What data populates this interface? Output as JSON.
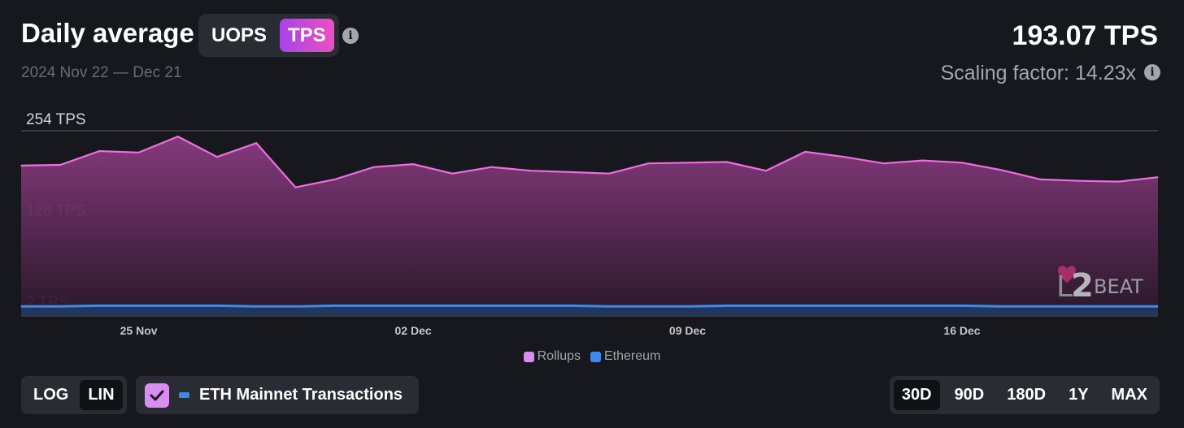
{
  "header": {
    "title": "Daily average",
    "metric_options": [
      "UOPS",
      "TPS"
    ],
    "metric_selected": "TPS",
    "date_range": "2024 Nov 22 — Dec 21",
    "total_value": "193.07 TPS",
    "scaling_factor": "Scaling factor: 14.23x",
    "info_icon": "i"
  },
  "watermark": {
    "brand": "L2BEAT",
    "number": "2",
    "letter": "L",
    "word": "BEAT"
  },
  "colors": {
    "rollups_line": "#ee6ee0",
    "rollups_fill_top": "#8b3b82",
    "ethereum_line": "#3c8aea",
    "ethereum_fill": "#1f3a62",
    "accent": "#d88df0"
  },
  "chart_data": {
    "type": "area",
    "x": [
      "2024-11-22",
      "2024-11-23",
      "2024-11-24",
      "2024-11-25",
      "2024-11-26",
      "2024-11-27",
      "2024-11-28",
      "2024-11-29",
      "2024-11-30",
      "2024-12-01",
      "2024-12-02",
      "2024-12-03",
      "2024-12-04",
      "2024-12-05",
      "2024-12-06",
      "2024-12-07",
      "2024-12-08",
      "2024-12-09",
      "2024-12-10",
      "2024-12-11",
      "2024-12-12",
      "2024-12-13",
      "2024-12-14",
      "2024-12-15",
      "2024-12-16",
      "2024-12-17",
      "2024-12-18",
      "2024-12-19",
      "2024-12-20",
      "2024-12-21"
    ],
    "series": [
      {
        "name": "Rollups",
        "values": [
          206,
          207,
          226,
          224,
          246,
          218,
          237,
          176,
          187,
          204,
          208,
          195,
          204,
          199,
          197,
          195,
          209,
          210,
          211,
          199,
          225,
          218,
          209,
          213,
          210,
          200,
          187,
          185,
          184,
          190
        ]
      },
      {
        "name": "Ethereum",
        "values": [
          12,
          12,
          13,
          13,
          13,
          13,
          12,
          12,
          13,
          13,
          13,
          13,
          13,
          13,
          13,
          12,
          12,
          12,
          13,
          13,
          13,
          13,
          13,
          13,
          13,
          12,
          12,
          12,
          12,
          12
        ]
      }
    ],
    "y_ticks": [
      "254 TPS",
      "128 TPS",
      "2 TPS"
    ],
    "y_tick_values": [
      254,
      128,
      2
    ],
    "ylim": [
      0,
      254
    ],
    "x_ticks": [
      "25 Nov",
      "02 Dec",
      "09 Dec",
      "16 Dec"
    ],
    "x_tick_dates": [
      "2024-11-25",
      "2024-12-02",
      "2024-12-09",
      "2024-12-16"
    ],
    "legend": [
      "Rollups",
      "Ethereum"
    ],
    "legend_position": "bottom-center",
    "scale": "linear",
    "grid": true
  },
  "controls": {
    "scale_options": [
      "LOG",
      "LIN"
    ],
    "scale_selected": "LIN",
    "eth_mainnet_label": "ETH Mainnet Transactions",
    "eth_mainnet_checked": true,
    "range_options": [
      "30D",
      "90D",
      "180D",
      "1Y",
      "MAX"
    ],
    "range_selected": "30D"
  }
}
